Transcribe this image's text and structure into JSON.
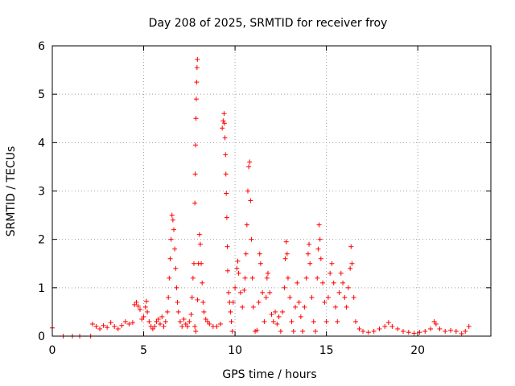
{
  "chart_data": {
    "type": "scatter",
    "title": "Day 208 of 2025, SRMTID for receiver froy",
    "xlabel": "GPS time / hours",
    "ylabel": "SRMTID / TECUs",
    "xlim": [
      0,
      24
    ],
    "ylim": [
      0,
      6
    ],
    "xticks": [
      0,
      5,
      10,
      15,
      20
    ],
    "yticks": [
      0,
      1,
      2,
      3,
      4,
      5,
      6
    ],
    "grid": true,
    "marker": "plus",
    "color": "#ff0000",
    "series": [
      {
        "name": "SRMTID",
        "points": [
          [
            0.0,
            0.17
          ],
          [
            0.6,
            0.0
          ],
          [
            1.1,
            0.0
          ],
          [
            1.5,
            0.0
          ],
          [
            2.1,
            0.0
          ],
          [
            2.2,
            0.25
          ],
          [
            2.4,
            0.2
          ],
          [
            2.6,
            0.15
          ],
          [
            2.8,
            0.22
          ],
          [
            3.0,
            0.18
          ],
          [
            3.2,
            0.28
          ],
          [
            3.4,
            0.2
          ],
          [
            3.6,
            0.15
          ],
          [
            3.8,
            0.22
          ],
          [
            4.0,
            0.3
          ],
          [
            4.2,
            0.25
          ],
          [
            4.4,
            0.28
          ],
          [
            4.5,
            0.65
          ],
          [
            4.6,
            0.7
          ],
          [
            4.7,
            0.62
          ],
          [
            4.8,
            0.55
          ],
          [
            4.9,
            0.35
          ],
          [
            5.0,
            0.4
          ],
          [
            5.1,
            0.6
          ],
          [
            5.15,
            0.72
          ],
          [
            5.2,
            0.5
          ],
          [
            5.3,
            0.3
          ],
          [
            5.4,
            0.2
          ],
          [
            5.5,
            0.15
          ],
          [
            5.6,
            0.2
          ],
          [
            5.7,
            0.3
          ],
          [
            5.8,
            0.35
          ],
          [
            5.9,
            0.25
          ],
          [
            6.0,
            0.4
          ],
          [
            6.1,
            0.2
          ],
          [
            6.2,
            0.3
          ],
          [
            6.3,
            0.5
          ],
          [
            6.35,
            0.8
          ],
          [
            6.4,
            1.2
          ],
          [
            6.45,
            1.6
          ],
          [
            6.5,
            2.0
          ],
          [
            6.55,
            2.5
          ],
          [
            6.6,
            2.4
          ],
          [
            6.65,
            2.2
          ],
          [
            6.7,
            1.8
          ],
          [
            6.75,
            1.4
          ],
          [
            6.8,
            1.0
          ],
          [
            6.85,
            0.7
          ],
          [
            6.9,
            0.5
          ],
          [
            7.0,
            0.3
          ],
          [
            7.1,
            0.2
          ],
          [
            7.2,
            0.35
          ],
          [
            7.3,
            0.25
          ],
          [
            7.4,
            0.2
          ],
          [
            7.5,
            0.3
          ],
          [
            7.6,
            0.45
          ],
          [
            7.65,
            0.8
          ],
          [
            7.7,
            1.2
          ],
          [
            7.75,
            1.5
          ],
          [
            7.8,
            0.2
          ],
          [
            7.85,
            0.1
          ],
          [
            7.8,
            2.75
          ],
          [
            7.82,
            3.35
          ],
          [
            7.84,
            3.95
          ],
          [
            7.86,
            4.5
          ],
          [
            7.88,
            4.9
          ],
          [
            7.9,
            5.25
          ],
          [
            7.92,
            5.55
          ],
          [
            7.94,
            5.72
          ],
          [
            7.95,
            0.75
          ],
          [
            8.0,
            1.5
          ],
          [
            8.05,
            2.1
          ],
          [
            8.1,
            1.9
          ],
          [
            8.15,
            1.5
          ],
          [
            8.2,
            1.1
          ],
          [
            8.25,
            0.7
          ],
          [
            8.3,
            0.5
          ],
          [
            8.4,
            0.35
          ],
          [
            8.5,
            0.3
          ],
          [
            8.6,
            0.25
          ],
          [
            8.8,
            0.2
          ],
          [
            9.0,
            0.2
          ],
          [
            9.2,
            0.25
          ],
          [
            9.3,
            4.3
          ],
          [
            9.35,
            4.45
          ],
          [
            9.4,
            4.6
          ],
          [
            9.42,
            4.4
          ],
          [
            9.45,
            4.1
          ],
          [
            9.48,
            3.75
          ],
          [
            9.5,
            3.35
          ],
          [
            9.52,
            2.95
          ],
          [
            9.55,
            2.45
          ],
          [
            9.58,
            1.85
          ],
          [
            9.6,
            1.35
          ],
          [
            9.65,
            0.9
          ],
          [
            9.7,
            0.7
          ],
          [
            9.75,
            0.5
          ],
          [
            9.8,
            0.3
          ],
          [
            9.85,
            0.1
          ],
          [
            9.9,
            0.7
          ],
          [
            10.0,
            1.0
          ],
          [
            10.1,
            1.4
          ],
          [
            10.15,
            1.55
          ],
          [
            10.2,
            1.3
          ],
          [
            10.3,
            0.9
          ],
          [
            10.4,
            0.6
          ],
          [
            10.5,
            0.95
          ],
          [
            10.55,
            1.2
          ],
          [
            10.6,
            1.7
          ],
          [
            10.65,
            2.3
          ],
          [
            10.7,
            3.0
          ],
          [
            10.75,
            3.5
          ],
          [
            10.8,
            3.6
          ],
          [
            10.85,
            2.8
          ],
          [
            10.9,
            2.0
          ],
          [
            10.95,
            1.2
          ],
          [
            11.0,
            0.6
          ],
          [
            11.1,
            0.1
          ],
          [
            11.2,
            0.12
          ],
          [
            11.3,
            0.7
          ],
          [
            11.35,
            1.7
          ],
          [
            11.4,
            1.5
          ],
          [
            11.5,
            0.9
          ],
          [
            11.6,
            0.3
          ],
          [
            11.7,
            0.8
          ],
          [
            11.75,
            1.2
          ],
          [
            11.8,
            1.3
          ],
          [
            11.9,
            0.9
          ],
          [
            12.0,
            0.45
          ],
          [
            12.1,
            0.3
          ],
          [
            12.2,
            0.5
          ],
          [
            12.3,
            0.25
          ],
          [
            12.4,
            0.4
          ],
          [
            12.5,
            0.1
          ],
          [
            12.6,
            0.5
          ],
          [
            12.7,
            1.0
          ],
          [
            12.75,
            1.6
          ],
          [
            12.8,
            1.95
          ],
          [
            12.85,
            1.7
          ],
          [
            12.9,
            1.2
          ],
          [
            13.0,
            0.8
          ],
          [
            13.1,
            0.3
          ],
          [
            13.2,
            0.1
          ],
          [
            13.3,
            0.6
          ],
          [
            13.4,
            1.1
          ],
          [
            13.5,
            0.7
          ],
          [
            13.6,
            0.4
          ],
          [
            13.7,
            0.1
          ],
          [
            13.8,
            0.6
          ],
          [
            13.9,
            1.2
          ],
          [
            14.0,
            1.7
          ],
          [
            14.05,
            1.9
          ],
          [
            14.1,
            1.5
          ],
          [
            14.2,
            0.8
          ],
          [
            14.3,
            0.3
          ],
          [
            14.4,
            0.1
          ],
          [
            14.5,
            1.2
          ],
          [
            14.55,
            1.8
          ],
          [
            14.6,
            2.3
          ],
          [
            14.65,
            2.0
          ],
          [
            14.7,
            1.6
          ],
          [
            14.8,
            1.1
          ],
          [
            14.9,
            0.7
          ],
          [
            15.0,
            0.3
          ],
          [
            15.1,
            0.8
          ],
          [
            15.2,
            1.3
          ],
          [
            15.3,
            1.5
          ],
          [
            15.4,
            1.1
          ],
          [
            15.5,
            0.6
          ],
          [
            15.6,
            0.3
          ],
          [
            15.7,
            0.9
          ],
          [
            15.8,
            1.3
          ],
          [
            15.9,
            1.1
          ],
          [
            16.0,
            0.8
          ],
          [
            16.1,
            0.6
          ],
          [
            16.2,
            1.0
          ],
          [
            16.3,
            1.4
          ],
          [
            16.35,
            1.85
          ],
          [
            16.4,
            1.5
          ],
          [
            16.5,
            0.8
          ],
          [
            16.6,
            0.3
          ],
          [
            16.8,
            0.15
          ],
          [
            17.0,
            0.1
          ],
          [
            17.3,
            0.08
          ],
          [
            17.6,
            0.1
          ],
          [
            17.9,
            0.15
          ],
          [
            18.2,
            0.2
          ],
          [
            18.4,
            0.28
          ],
          [
            18.6,
            0.2
          ],
          [
            18.9,
            0.15
          ],
          [
            19.2,
            0.1
          ],
          [
            19.5,
            0.08
          ],
          [
            19.8,
            0.06
          ],
          [
            20.1,
            0.08
          ],
          [
            20.4,
            0.1
          ],
          [
            20.7,
            0.15
          ],
          [
            20.9,
            0.3
          ],
          [
            21.0,
            0.25
          ],
          [
            21.2,
            0.15
          ],
          [
            21.5,
            0.1
          ],
          [
            21.8,
            0.12
          ],
          [
            22.1,
            0.1
          ],
          [
            22.4,
            0.05
          ],
          [
            22.6,
            0.1
          ],
          [
            22.8,
            0.2
          ]
        ]
      }
    ]
  }
}
